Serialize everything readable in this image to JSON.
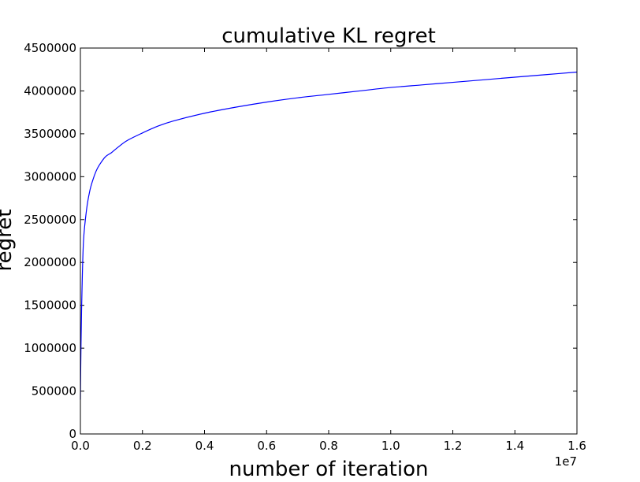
{
  "chart_data": {
    "type": "line",
    "title": "cumulative KL regret",
    "xlabel": "number of iteration",
    "ylabel": "regret",
    "x_offset_label": "1e7",
    "xlim": [
      0,
      1.6
    ],
    "ylim": [
      0,
      4500000
    ],
    "grid": false,
    "legend": "none",
    "x_ticks": [
      0.0,
      0.2,
      0.4,
      0.6,
      0.8,
      1.0,
      1.2,
      1.4,
      1.6
    ],
    "x_tick_labels": [
      "0.0",
      "0.2",
      "0.4",
      "0.6",
      "0.8",
      "1.0",
      "1.2",
      "1.4",
      "1.6"
    ],
    "y_ticks": [
      0,
      500000,
      1000000,
      1500000,
      2000000,
      2500000,
      3000000,
      3500000,
      4000000,
      4500000
    ],
    "y_tick_labels": [
      "0",
      "500000",
      "1000000",
      "1500000",
      "2000000",
      "2500000",
      "3000000",
      "3500000",
      "4000000",
      "4500000"
    ],
    "series": [
      {
        "color": "#0000ff",
        "x": [
          0.0,
          0.002,
          0.005,
          0.01,
          0.02,
          0.03,
          0.04,
          0.05,
          0.06,
          0.08,
          0.1,
          0.12,
          0.15,
          0.2,
          0.25,
          0.3,
          0.4,
          0.5,
          0.6,
          0.7,
          0.8,
          0.9,
          1.0,
          1.1,
          1.2,
          1.3,
          1.4,
          1.5,
          1.6
        ],
        "y": [
          400000,
          1050000,
          1650000,
          2250000,
          2620000,
          2830000,
          2960000,
          3060000,
          3130000,
          3230000,
          3280000,
          3340000,
          3420000,
          3510000,
          3590000,
          3650000,
          3740000,
          3810000,
          3870000,
          3920000,
          3960000,
          4000000,
          4040000,
          4070000,
          4100000,
          4130000,
          4160000,
          4190000,
          4220000
        ]
      }
    ]
  }
}
